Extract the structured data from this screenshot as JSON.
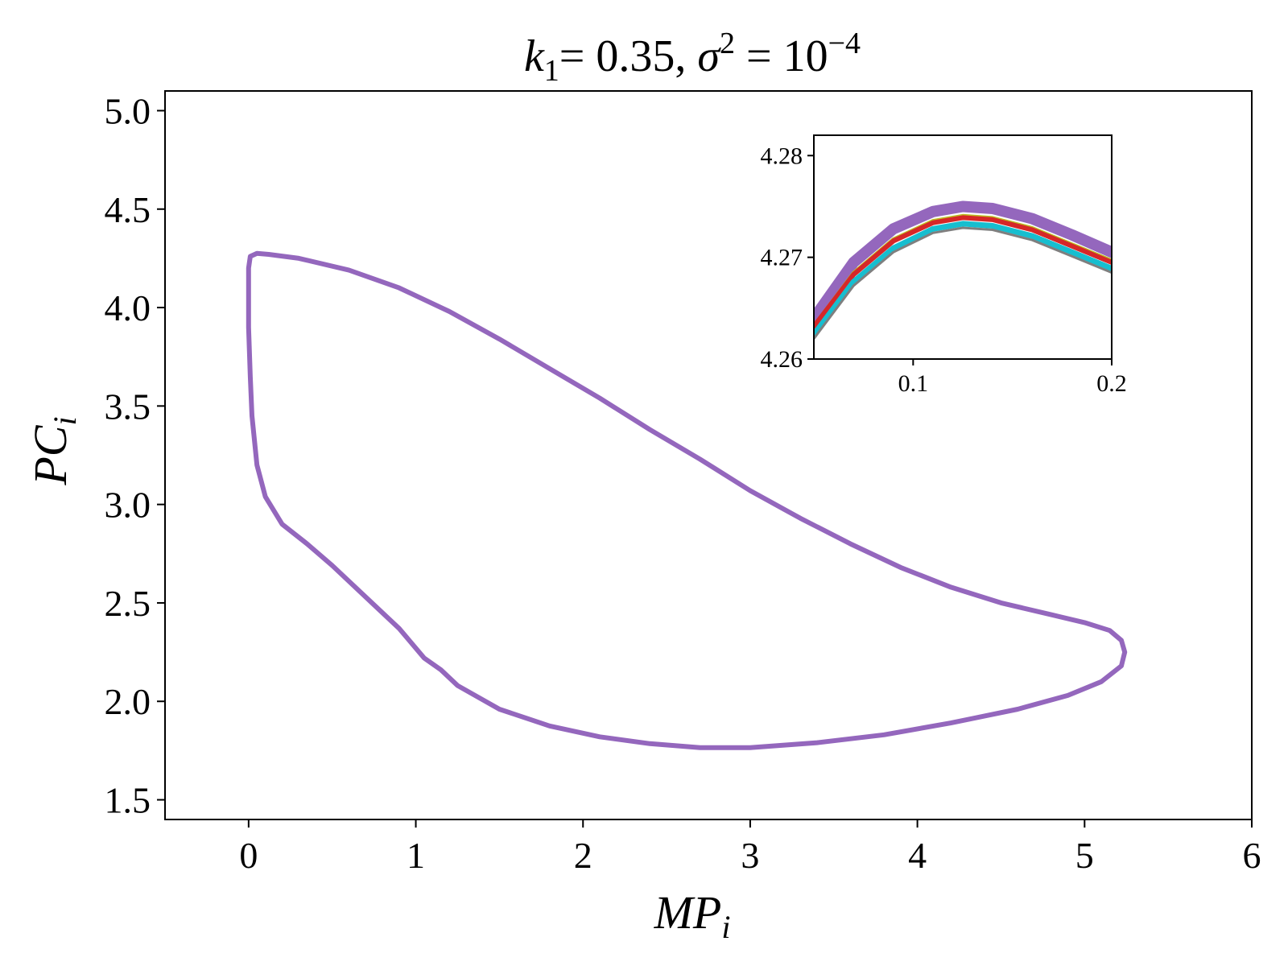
{
  "chart_data": [
    {
      "type": "line",
      "title": {
        "k_symbol": "k",
        "k_subscript": "1",
        "k_value": "= 0.35, ",
        "sigma_symbol": "σ",
        "sigma_power": "2",
        "sigma_value": " = 10",
        "sigma_exponent": "−4"
      },
      "xlabel": {
        "main": "MP",
        "sub": "i"
      },
      "ylabel": {
        "main": "PC",
        "sub": "i"
      },
      "xlim": [
        -0.5,
        6
      ],
      "ylim": [
        1.4,
        5.1
      ],
      "xticks": [
        0,
        1,
        2,
        3,
        4,
        5,
        6
      ],
      "xtick_labels": [
        "0",
        "1",
        "2",
        "3",
        "4",
        "5",
        "6"
      ],
      "yticks": [
        1.5,
        2.0,
        2.5,
        3.0,
        3.5,
        4.0,
        4.5,
        5.0
      ],
      "ytick_labels": [
        "1.5",
        "2.0",
        "2.5",
        "3.0",
        "3.5",
        "4.0",
        "4.5",
        "5.0"
      ],
      "grid": false,
      "legend": "none",
      "series": [
        {
          "color": "#9467bd",
          "closed": true,
          "x": [
            0.0,
            0.0,
            0.01,
            0.05,
            0.12,
            0.3,
            0.6,
            0.9,
            1.2,
            1.5,
            1.8,
            2.1,
            2.4,
            2.7,
            3.0,
            3.3,
            3.6,
            3.9,
            4.2,
            4.5,
            4.8,
            5.0,
            5.15,
            5.22,
            5.24,
            5.22,
            5.1,
            4.9,
            4.6,
            4.2,
            3.8,
            3.4,
            3.0,
            2.7,
            2.4,
            2.1,
            1.8,
            1.5,
            1.25,
            1.15,
            1.05,
            0.9,
            0.7,
            0.5,
            0.35,
            0.2,
            0.1,
            0.05,
            0.02,
            0.01,
            0.0
          ],
          "y": [
            3.9,
            4.2,
            4.26,
            4.275,
            4.27,
            4.25,
            4.19,
            4.1,
            3.98,
            3.84,
            3.69,
            3.54,
            3.38,
            3.23,
            3.07,
            2.93,
            2.8,
            2.68,
            2.58,
            2.5,
            2.44,
            2.4,
            2.36,
            2.31,
            2.25,
            2.18,
            2.1,
            2.03,
            1.96,
            1.89,
            1.83,
            1.79,
            1.765,
            1.765,
            1.785,
            1.82,
            1.875,
            1.96,
            2.08,
            2.16,
            2.22,
            2.37,
            2.53,
            2.69,
            2.8,
            2.9,
            3.04,
            3.2,
            3.45,
            3.65,
            3.9
          ]
        }
      ]
    },
    {
      "type": "line",
      "title": "",
      "xlim": [
        0.05,
        0.2
      ],
      "ylim": [
        4.26,
        4.282
      ],
      "xticks": [
        0.1,
        0.2
      ],
      "xtick_labels": [
        "0.1",
        "0.2"
      ],
      "yticks": [
        4.26,
        4.27,
        4.28
      ],
      "ytick_labels": [
        "4.26",
        "4.27",
        "4.28"
      ],
      "grid": false,
      "legend": "none",
      "series": [
        {
          "color": "#9467bd",
          "x": [
            0.05,
            0.07,
            0.09,
            0.11,
            0.125,
            0.14,
            0.16,
            0.18,
            0.2
          ],
          "y": [
            4.264,
            4.2695,
            4.2728,
            4.2745,
            4.275,
            4.2748,
            4.2738,
            4.2722,
            4.2705
          ]
        },
        {
          "color": "#bcbd22",
          "x": [
            0.05,
            0.07,
            0.09,
            0.11,
            0.125,
            0.14,
            0.16,
            0.18,
            0.2
          ],
          "y": [
            4.2633,
            4.2685,
            4.2718,
            4.2736,
            4.2741,
            4.2739,
            4.2729,
            4.2713,
            4.2697
          ]
        },
        {
          "color": "#d62728",
          "x": [
            0.05,
            0.07,
            0.09,
            0.11,
            0.125,
            0.14,
            0.16,
            0.18,
            0.2
          ],
          "y": [
            4.2632,
            4.2683,
            4.2716,
            4.2734,
            4.2739,
            4.2737,
            4.2727,
            4.2711,
            4.2695
          ]
        },
        {
          "color": "#17becf",
          "x": [
            0.05,
            0.07,
            0.09,
            0.11,
            0.125,
            0.14,
            0.16,
            0.18,
            0.2
          ],
          "y": [
            4.2624,
            4.2676,
            4.2709,
            4.2728,
            4.2733,
            4.2731,
            4.2721,
            4.2705,
            4.2689
          ]
        },
        {
          "color": "#7f7f7f",
          "x": [
            0.05,
            0.07,
            0.09,
            0.11,
            0.125,
            0.14,
            0.16,
            0.18,
            0.2
          ],
          "y": [
            4.262,
            4.2672,
            4.2705,
            4.2724,
            4.2729,
            4.2727,
            4.2717,
            4.2701,
            4.2685
          ]
        }
      ]
    }
  ]
}
